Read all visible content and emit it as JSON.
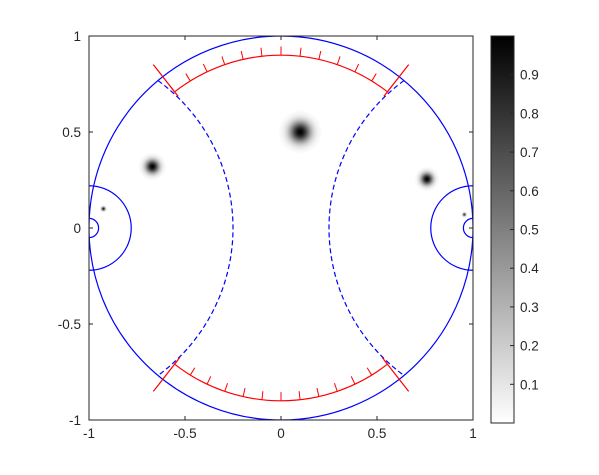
{
  "chart_data": {
    "type": "heatmap",
    "title": "",
    "xlabel": "",
    "ylabel": "",
    "xlim": [
      -1,
      1
    ],
    "ylim": [
      -1,
      1
    ],
    "xticks": [
      -1,
      -0.5,
      0,
      0.5,
      1
    ],
    "xtick_labels": [
      "-1",
      "-0.5",
      "0",
      "0.5",
      "1"
    ],
    "yticks": [
      -1,
      -0.5,
      0,
      0.5,
      1
    ],
    "ytick_labels": [
      "-1",
      "-0.5",
      "0",
      "0.5",
      "1"
    ],
    "colormap": "gray-reversed",
    "colorbar": {
      "range": [
        0,
        1
      ],
      "ticks": [
        0.1,
        0.2,
        0.3,
        0.4,
        0.5,
        0.6,
        0.7,
        0.8,
        0.9
      ],
      "tick_labels": [
        "0.1",
        "0.2",
        "0.3",
        "0.4",
        "0.5",
        "0.6",
        "0.7",
        "0.8",
        "0.9"
      ]
    },
    "blobs": [
      {
        "x": 0.1,
        "y": 0.5,
        "peak": 1.0,
        "radius": 0.07
      },
      {
        "x": -0.67,
        "y": 0.32,
        "peak": 1.0,
        "radius": 0.045
      },
      {
        "x": 0.76,
        "y": 0.255,
        "peak": 1.0,
        "radius": 0.04
      },
      {
        "x": -0.925,
        "y": 0.1,
        "peak": 0.9,
        "radius": 0.013
      },
      {
        "x": 0.955,
        "y": 0.07,
        "peak": 0.8,
        "radius": 0.011
      }
    ],
    "overlay": {
      "color_blue": "#0000ff",
      "color_red": "#ff0000",
      "unit_circle": {
        "cx": 0,
        "cy": 0,
        "r": 1
      },
      "dashed_arcs": [
        {
          "cx": -1.2,
          "cy": 0,
          "r": 0.95
        },
        {
          "cx": 1.2,
          "cy": 0,
          "r": 0.95
        }
      ],
      "side_semicircles": [
        {
          "cx": -1.0,
          "cy": 0,
          "r": 0.22
        },
        {
          "cx": -1.0,
          "cy": 0,
          "r": 0.05
        },
        {
          "cx": 1.0,
          "cy": 0,
          "r": 0.22
        },
        {
          "cx": 1.0,
          "cy": 0,
          "r": 0.05
        }
      ],
      "red_arc": {
        "cx": 0,
        "cy": 0,
        "r": 0.9,
        "start_deg": 52,
        "end_deg": 128,
        "tick_count": 12
      },
      "red_arc_bottom": {
        "cx": 0,
        "cy": 0,
        "r": 0.9,
        "start_deg": 232,
        "end_deg": 308,
        "tick_count": 12
      },
      "red_chords": [
        {
          "angle_deg": 52
        },
        {
          "angle_deg": 128
        },
        {
          "angle_deg": 232
        },
        {
          "angle_deg": 308
        }
      ]
    }
  }
}
